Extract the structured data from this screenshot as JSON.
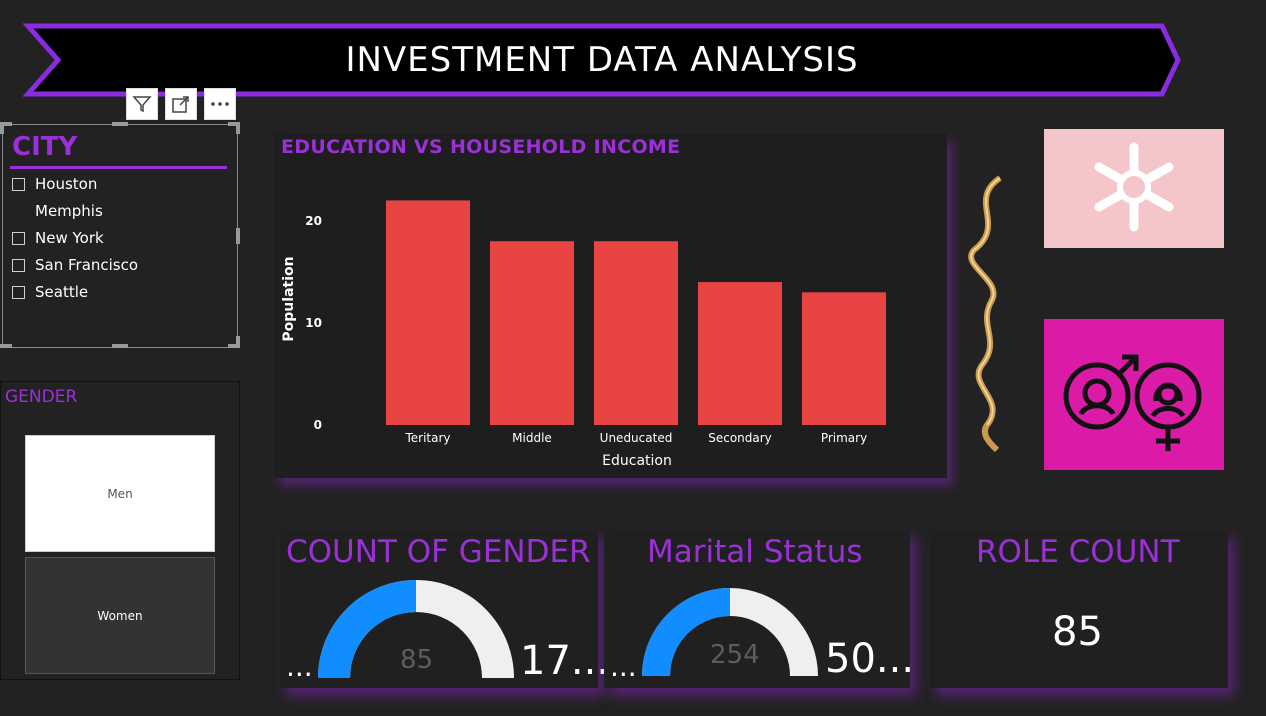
{
  "header": {
    "title": "INVESTMENT DATA ANALYSIS"
  },
  "toolbar": {
    "filter_icon": "filter-icon",
    "focus_icon": "focus-mode-icon",
    "more_icon": "more-options-icon"
  },
  "city_slicer": {
    "title": "CITY",
    "items": [
      {
        "label": "Houston",
        "checkbox": true
      },
      {
        "label": "Memphis",
        "checkbox": false
      },
      {
        "label": "New York",
        "checkbox": true
      },
      {
        "label": "San Francisco",
        "checkbox": true
      },
      {
        "label": "Seattle",
        "checkbox": true
      }
    ]
  },
  "gender_slicer": {
    "title": "GENDER",
    "options": [
      {
        "label": "Men"
      },
      {
        "label": "Women"
      }
    ]
  },
  "chart_data": {
    "type": "bar",
    "title": "EDUCATION VS HOUSEHOLD INCOME",
    "xlabel": "Education",
    "ylabel": "Population",
    "categories": [
      "Teritary",
      "Middle",
      "Uneducated",
      "Secondary",
      "Primary"
    ],
    "values": [
      22,
      18,
      18,
      14,
      13
    ],
    "ylim": [
      0,
      24
    ],
    "yticks": [
      "20",
      "10",
      "0"
    ],
    "bar_color": "#e84444",
    "grid": false
  },
  "cards": {
    "count_of_gender": {
      "title": "COUNT OF GENDER",
      "min": "...",
      "value": "85",
      "max": "17...",
      "fill_fraction": 0.5
    },
    "marital_status": {
      "title": "Marital Status",
      "min": "...",
      "value": "254",
      "max": "50...",
      "fill_fraction": 0.5
    },
    "role_count": {
      "title": "ROLE COUNT",
      "value": "85"
    }
  },
  "colors": {
    "accent": "#9b30d9",
    "gauge_fill": "#118dff",
    "gauge_track": "#f0efef",
    "icon_tile": "#dc1aa8",
    "image_tile": "#f4c6c9"
  }
}
